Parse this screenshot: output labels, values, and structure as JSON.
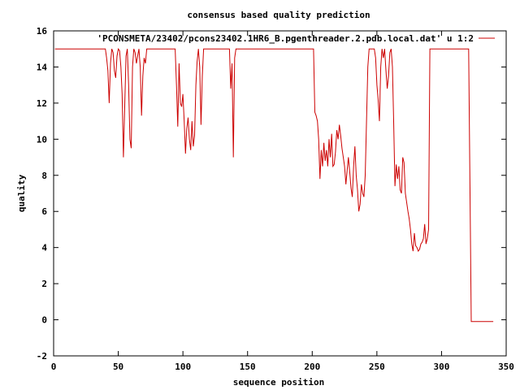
{
  "chart_data": {
    "type": "line",
    "title": "consensus based quality prediction",
    "xlabel": "sequence position",
    "ylabel": "quality",
    "xlim": [
      0,
      350
    ],
    "ylim": [
      -2,
      16
    ],
    "x_ticks": [
      "0",
      "50",
      "100",
      "150",
      "200",
      "250",
      "300",
      "350"
    ],
    "y_ticks": [
      "-2",
      "0",
      "2",
      "4",
      "6",
      "8",
      "10",
      "12",
      "14",
      "16"
    ],
    "grid": false,
    "legend_position": "top-right",
    "series": [
      {
        "name": "'PCONSMETA/23402/pcons23402.1HR6_B.pgenthreader.2.pdb.local.dat' u 1:2",
        "color": "#cc0000",
        "points": [
          [
            1,
            15
          ],
          [
            40,
            15
          ],
          [
            41,
            14.5
          ],
          [
            42,
            13.8
          ],
          [
            43,
            12.0
          ],
          [
            44,
            14.2
          ],
          [
            45,
            15
          ],
          [
            46,
            14.8
          ],
          [
            47,
            13.8
          ],
          [
            48,
            13.4
          ],
          [
            49,
            14.6
          ],
          [
            50,
            15
          ],
          [
            51,
            14.9
          ],
          [
            52,
            14.0
          ],
          [
            53,
            12.5
          ],
          [
            54,
            9.0
          ],
          [
            55,
            11.8
          ],
          [
            56,
            14.6
          ],
          [
            57,
            15
          ],
          [
            58,
            13.0
          ],
          [
            59,
            10.0
          ],
          [
            60,
            9.5
          ],
          [
            61,
            14.0
          ],
          [
            62,
            15
          ],
          [
            63,
            14.8
          ],
          [
            64,
            14.2
          ],
          [
            65,
            14.6
          ],
          [
            66,
            15
          ],
          [
            67,
            14.0
          ],
          [
            68,
            11.3
          ],
          [
            69,
            13.5
          ],
          [
            70,
            14.5
          ],
          [
            71,
            14.2
          ],
          [
            72,
            15
          ],
          [
            94,
            15
          ],
          [
            95,
            13.0
          ],
          [
            96,
            10.7
          ],
          [
            97,
            14.2
          ],
          [
            98,
            12.0
          ],
          [
            99,
            11.8
          ],
          [
            100,
            12.5
          ],
          [
            101,
            11.0
          ],
          [
            102,
            9.2
          ],
          [
            103,
            10.6
          ],
          [
            104,
            11.2
          ],
          [
            105,
            10.0
          ],
          [
            106,
            9.4
          ],
          [
            107,
            11.0
          ],
          [
            108,
            9.6
          ],
          [
            109,
            10.2
          ],
          [
            110,
            13.0
          ],
          [
            111,
            14.3
          ],
          [
            112,
            15
          ],
          [
            113,
            14.0
          ],
          [
            114,
            10.8
          ],
          [
            115,
            13.5
          ],
          [
            116,
            15
          ],
          [
            136,
            15
          ],
          [
            137,
            12.8
          ],
          [
            138,
            14.2
          ],
          [
            139,
            9.0
          ],
          [
            140,
            14.5
          ],
          [
            141,
            15
          ],
          [
            201,
            15
          ],
          [
            202,
            11.5
          ],
          [
            203,
            11.3
          ],
          [
            204,
            11.0
          ],
          [
            205,
            10.0
          ],
          [
            206,
            7.8
          ],
          [
            207,
            9.4
          ],
          [
            208,
            8.5
          ],
          [
            209,
            9.8
          ],
          [
            210,
            8.8
          ],
          [
            211,
            9.4
          ],
          [
            212,
            8.5
          ],
          [
            213,
            10.0
          ],
          [
            214,
            9.0
          ],
          [
            215,
            10.3
          ],
          [
            216,
            8.5
          ],
          [
            217,
            8.6
          ],
          [
            218,
            9.3
          ],
          [
            219,
            10.5
          ],
          [
            220,
            10.0
          ],
          [
            221,
            10.8
          ],
          [
            222,
            10.2
          ],
          [
            223,
            9.5
          ],
          [
            224,
            9.0
          ],
          [
            225,
            8.5
          ],
          [
            226,
            7.5
          ],
          [
            227,
            8.3
          ],
          [
            228,
            9.0
          ],
          [
            229,
            8.2
          ],
          [
            230,
            7.3
          ],
          [
            231,
            6.8
          ],
          [
            232,
            8.5
          ],
          [
            233,
            9.6
          ],
          [
            234,
            8.0
          ],
          [
            235,
            7.2
          ],
          [
            236,
            6.0
          ],
          [
            237,
            6.4
          ],
          [
            238,
            7.5
          ],
          [
            239,
            7.0
          ],
          [
            240,
            6.8
          ],
          [
            241,
            8.0
          ],
          [
            242,
            11.0
          ],
          [
            243,
            14.0
          ],
          [
            244,
            15
          ],
          [
            245,
            15
          ],
          [
            246,
            15
          ],
          [
            247,
            15
          ],
          [
            248,
            15
          ],
          [
            249,
            14.5
          ],
          [
            250,
            13.0
          ],
          [
            251,
            12.2
          ],
          [
            252,
            11.0
          ],
          [
            253,
            14.0
          ],
          [
            254,
            15
          ],
          [
            255,
            14.5
          ],
          [
            256,
            15
          ],
          [
            257,
            13.8
          ],
          [
            258,
            12.8
          ],
          [
            259,
            13.5
          ],
          [
            260,
            14.8
          ],
          [
            261,
            15
          ],
          [
            262,
            14.0
          ],
          [
            263,
            11.0
          ],
          [
            264,
            7.4
          ],
          [
            265,
            8.6
          ],
          [
            266,
            7.8
          ],
          [
            267,
            8.5
          ],
          [
            268,
            7.2
          ],
          [
            269,
            7.0
          ],
          [
            270,
            9.0
          ],
          [
            271,
            8.7
          ],
          [
            272,
            7.0
          ],
          [
            273,
            6.5
          ],
          [
            274,
            6.0
          ],
          [
            275,
            5.6
          ],
          [
            276,
            5.0
          ],
          [
            277,
            4.2
          ],
          [
            278,
            3.8
          ],
          [
            279,
            4.8
          ],
          [
            280,
            4.1
          ],
          [
            281,
            4.0
          ],
          [
            282,
            3.8
          ],
          [
            283,
            3.9
          ],
          [
            284,
            4.2
          ],
          [
            285,
            4.3
          ],
          [
            286,
            4.5
          ],
          [
            287,
            5.3
          ],
          [
            288,
            4.2
          ],
          [
            289,
            4.5
          ],
          [
            290,
            5.0
          ],
          [
            291,
            15
          ],
          [
            321,
            15
          ],
          [
            322,
            7.5
          ],
          [
            323,
            -0.1
          ],
          [
            340,
            -0.1
          ]
        ]
      }
    ]
  }
}
